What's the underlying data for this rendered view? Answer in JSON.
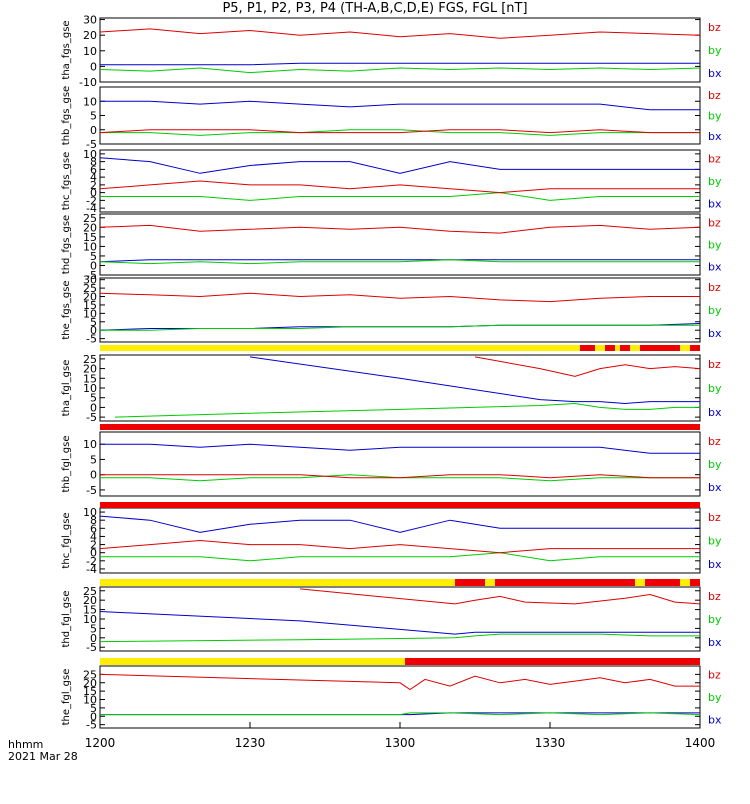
{
  "title": "P5, P1, P2, P3, P4 (TH-A,B,C,D,E) FGS, FGL [nT]",
  "time_axis": {
    "labels": [
      "1200",
      "1230",
      "1300",
      "1330",
      "1400"
    ],
    "label_title": "hhmm",
    "date": "2021 Mar 28",
    "range_minutes": [
      0,
      120
    ]
  },
  "legend_labels": [
    "bz",
    "by",
    "bx"
  ],
  "colors": {
    "bx": "#0000cc",
    "by": "#00cc00",
    "bz": "#dd0000",
    "bar_yellow": "#ffee00",
    "bar_red": "#ee0000",
    "axes": "#000000"
  },
  "chart_data": [
    {
      "type": "line",
      "ylabel": "tha_fgs_gse",
      "ylim": [
        -10,
        31
      ],
      "yticks": [
        30,
        20,
        10,
        0,
        -10
      ],
      "series": [
        {
          "name": "bz",
          "x": [
            0,
            10,
            20,
            30,
            40,
            50,
            60,
            70,
            80,
            90,
            100,
            110,
            120
          ],
          "y": [
            22,
            24,
            21,
            23,
            20,
            22,
            19,
            21,
            18,
            20,
            22,
            21,
            20
          ]
        },
        {
          "name": "by",
          "x": [
            0,
            10,
            20,
            30,
            40,
            50,
            60,
            70,
            80,
            90,
            100,
            110,
            120
          ],
          "y": [
            -2,
            -3,
            -1,
            -4,
            -2,
            -3,
            -1,
            -2,
            -1,
            -2,
            -1,
            -2,
            -1
          ]
        },
        {
          "name": "bx",
          "x": [
            0,
            10,
            20,
            30,
            40,
            50,
            60,
            70,
            80,
            90,
            100,
            110,
            120
          ],
          "y": [
            1,
            1,
            1,
            1,
            2,
            2,
            2,
            2,
            2,
            2,
            2,
            2,
            2
          ]
        }
      ]
    },
    {
      "type": "line",
      "ylabel": "thb_fgs_gse",
      "ylim": [
        -5,
        15
      ],
      "yticks": [
        10,
        5,
        0,
        -5
      ],
      "series": [
        {
          "name": "bz",
          "x": [
            0,
            10,
            20,
            30,
            40,
            50,
            60,
            70,
            80,
            90,
            100,
            110,
            120
          ],
          "y": [
            -1,
            0,
            0,
            0,
            -1,
            -1,
            -1,
            0,
            0,
            -1,
            0,
            -1,
            -1
          ]
        },
        {
          "name": "by",
          "x": [
            0,
            10,
            20,
            30,
            40,
            50,
            60,
            70,
            80,
            90,
            100,
            110,
            120
          ],
          "y": [
            -1,
            -1,
            -2,
            -1,
            -1,
            0,
            0,
            -1,
            -1,
            -2,
            -1,
            -1,
            -1
          ]
        },
        {
          "name": "bx",
          "x": [
            0,
            10,
            20,
            30,
            40,
            50,
            60,
            70,
            80,
            90,
            100,
            110,
            120
          ],
          "y": [
            10,
            10,
            9,
            10,
            9,
            8,
            9,
            9,
            9,
            9,
            9,
            7,
            7
          ]
        }
      ]
    },
    {
      "type": "line",
      "ylabel": "thc_fgs_gse",
      "ylim": [
        -5,
        11
      ],
      "yticks": [
        10,
        8,
        6,
        4,
        2,
        0,
        -2,
        -4
      ],
      "series": [
        {
          "name": "bz",
          "x": [
            0,
            10,
            20,
            30,
            40,
            50,
            60,
            70,
            80,
            90,
            100,
            110,
            120
          ],
          "y": [
            1,
            2,
            3,
            2,
            2,
            1,
            2,
            1,
            0,
            1,
            1,
            1,
            1
          ]
        },
        {
          "name": "by",
          "x": [
            0,
            10,
            20,
            30,
            40,
            50,
            60,
            70,
            80,
            90,
            100,
            110,
            120
          ],
          "y": [
            -1,
            -1,
            -1,
            -2,
            -1,
            -1,
            -1,
            -1,
            0,
            -2,
            -1,
            -1,
            -1
          ]
        },
        {
          "name": "bx",
          "x": [
            0,
            10,
            20,
            30,
            40,
            50,
            60,
            70,
            80,
            90,
            100,
            110,
            120
          ],
          "y": [
            9,
            8,
            5,
            7,
            8,
            8,
            5,
            8,
            6,
            6,
            6,
            6,
            6
          ]
        }
      ]
    },
    {
      "type": "line",
      "ylabel": "thd_fgs_gse",
      "ylim": [
        -5,
        27
      ],
      "yticks": [
        25,
        20,
        15,
        10,
        5,
        0,
        -5
      ],
      "series": [
        {
          "name": "bz",
          "x": [
            0,
            10,
            20,
            30,
            40,
            50,
            60,
            70,
            80,
            90,
            100,
            110,
            120
          ],
          "y": [
            20,
            21,
            18,
            19,
            20,
            19,
            20,
            18,
            17,
            20,
            21,
            19,
            20
          ]
        },
        {
          "name": "by",
          "x": [
            0,
            10,
            20,
            30,
            40,
            50,
            60,
            70,
            80,
            90,
            100,
            110,
            120
          ],
          "y": [
            2,
            1,
            2,
            1,
            2,
            2,
            2,
            3,
            2,
            2,
            2,
            2,
            2
          ]
        },
        {
          "name": "bx",
          "x": [
            0,
            10,
            20,
            30,
            40,
            50,
            60,
            70,
            80,
            90,
            100,
            110,
            120
          ],
          "y": [
            2,
            3,
            3,
            3,
            3,
            3,
            3,
            3,
            3,
            3,
            3,
            3,
            3
          ]
        }
      ]
    },
    {
      "type": "line",
      "ylabel": "the_fgs_gse",
      "ylim": [
        -7,
        31
      ],
      "yticks": [
        30,
        25,
        20,
        15,
        10,
        5,
        0,
        -5
      ],
      "series": [
        {
          "name": "bz",
          "x": [
            0,
            10,
            20,
            30,
            40,
            50,
            60,
            70,
            80,
            90,
            100,
            110,
            120
          ],
          "y": [
            22,
            21,
            20,
            22,
            20,
            21,
            19,
            20,
            18,
            17,
            19,
            20,
            20
          ]
        },
        {
          "name": "by",
          "x": [
            0,
            10,
            20,
            30,
            40,
            50,
            60,
            70,
            80,
            90,
            100,
            110,
            120
          ],
          "y": [
            0,
            0,
            1,
            1,
            1,
            2,
            2,
            2,
            3,
            3,
            3,
            3,
            3
          ]
        },
        {
          "name": "bx",
          "x": [
            0,
            10,
            20,
            30,
            40,
            50,
            60,
            70,
            80,
            90,
            100,
            110,
            120
          ],
          "y": [
            0,
            1,
            1,
            1,
            2,
            2,
            2,
            2,
            3,
            3,
            3,
            3,
            4
          ]
        }
      ]
    },
    {
      "type": "line",
      "ylabel": "tha_fgl_gse",
      "ylim": [
        -7,
        27
      ],
      "yticks": [
        25,
        20,
        15,
        10,
        5,
        0,
        -5
      ],
      "series": [
        {
          "name": "bz",
          "x": [
            75,
            88,
            95,
            100,
            105,
            110,
            115,
            120
          ],
          "y": [
            26,
            20,
            16,
            20,
            22,
            20,
            21,
            20
          ]
        },
        {
          "name": "by",
          "x": [
            3,
            30,
            60,
            88,
            95,
            100,
            105,
            110,
            115,
            120
          ],
          "y": [
            -5,
            -3,
            -1,
            1,
            2,
            0,
            -1,
            -1,
            0,
            0
          ]
        },
        {
          "name": "bx",
          "x": [
            30,
            60,
            88,
            95,
            100,
            105,
            110,
            115,
            120
          ],
          "y": [
            26,
            15,
            4,
            3,
            3,
            2,
            3,
            3,
            3
          ]
        }
      ]
    },
    {
      "type": "line",
      "ylabel": "thb_fgl_gse",
      "ylim": [
        -7,
        14
      ],
      "yticks": [
        10,
        5,
        0,
        -5
      ],
      "series": [
        {
          "name": "bz",
          "x": [
            0,
            10,
            20,
            30,
            40,
            50,
            60,
            70,
            80,
            90,
            100,
            110,
            120
          ],
          "y": [
            0,
            0,
            0,
            0,
            0,
            -1,
            -1,
            0,
            0,
            -1,
            0,
            -1,
            -1
          ]
        },
        {
          "name": "by",
          "x": [
            0,
            10,
            20,
            30,
            40,
            50,
            60,
            70,
            80,
            90,
            100,
            110,
            120
          ],
          "y": [
            -1,
            -1,
            -2,
            -1,
            -1,
            0,
            -1,
            -1,
            -1,
            -2,
            -1,
            -1,
            -1
          ]
        },
        {
          "name": "bx",
          "x": [
            0,
            10,
            20,
            30,
            40,
            50,
            60,
            70,
            80,
            90,
            100,
            110,
            120
          ],
          "y": [
            10,
            10,
            9,
            10,
            9,
            8,
            9,
            9,
            9,
            9,
            9,
            7,
            7
          ]
        }
      ]
    },
    {
      "type": "line",
      "ylabel": "thc_fgl_gse",
      "ylim": [
        -5,
        11
      ],
      "yticks": [
        10,
        8,
        6,
        4,
        2,
        0,
        -2,
        -4
      ],
      "series": [
        {
          "name": "bz",
          "x": [
            0,
            10,
            20,
            30,
            40,
            50,
            60,
            70,
            80,
            90,
            100,
            110,
            120
          ],
          "y": [
            1,
            2,
            3,
            2,
            2,
            1,
            2,
            1,
            0,
            1,
            1,
            1,
            1
          ]
        },
        {
          "name": "by",
          "x": [
            0,
            10,
            20,
            30,
            40,
            50,
            60,
            70,
            80,
            90,
            100,
            110,
            120
          ],
          "y": [
            -1,
            -1,
            -1,
            -2,
            -1,
            -1,
            -1,
            -1,
            0,
            -2,
            -1,
            -1,
            -1
          ]
        },
        {
          "name": "bx",
          "x": [
            0,
            10,
            20,
            30,
            40,
            50,
            60,
            70,
            80,
            90,
            100,
            110,
            120
          ],
          "y": [
            9,
            8,
            5,
            7,
            8,
            8,
            5,
            8,
            6,
            6,
            6,
            6,
            6
          ]
        }
      ]
    },
    {
      "type": "line",
      "ylabel": "thd_fgl_gse",
      "ylim": [
        -7,
        27
      ],
      "yticks": [
        25,
        20,
        15,
        10,
        5,
        0,
        -5
      ],
      "series": [
        {
          "name": "bz",
          "x": [
            40,
            71,
            75,
            80,
            85,
            95,
            105,
            110,
            115,
            120
          ],
          "y": [
            26,
            18,
            20,
            22,
            19,
            18,
            21,
            23,
            19,
            18
          ]
        },
        {
          "name": "by",
          "x": [
            0,
            40,
            71,
            75,
            80,
            90,
            100,
            110,
            120
          ],
          "y": [
            -2,
            -1,
            0,
            1,
            2,
            2,
            2,
            1,
            1
          ]
        },
        {
          "name": "bx",
          "x": [
            0,
            40,
            71,
            75,
            80,
            90,
            100,
            110,
            120
          ],
          "y": [
            14,
            9,
            2,
            3,
            3,
            3,
            3,
            3,
            3
          ]
        }
      ]
    },
    {
      "type": "line",
      "ylabel": "the_fgl_gse",
      "ylim": [
        -7,
        30
      ],
      "yticks": [
        25,
        20,
        15,
        10,
        5,
        0,
        -5
      ],
      "series": [
        {
          "name": "bz",
          "x": [
            0,
            60,
            62,
            65,
            70,
            75,
            80,
            85,
            90,
            95,
            100,
            105,
            110,
            115,
            120
          ],
          "y": [
            25,
            20,
            16,
            22,
            18,
            24,
            20,
            22,
            19,
            21,
            23,
            20,
            22,
            18,
            18
          ]
        },
        {
          "name": "by",
          "x": [
            0,
            60,
            62,
            70,
            80,
            90,
            100,
            110,
            120
          ],
          "y": [
            1,
            1,
            2,
            2,
            1,
            2,
            1,
            2,
            1
          ]
        },
        {
          "name": "bx",
          "x": [
            0,
            60,
            62,
            70,
            80,
            90,
            100,
            110,
            120
          ],
          "y": [
            1,
            1,
            1,
            2,
            2,
            2,
            2,
            2,
            2
          ]
        }
      ]
    }
  ],
  "status_bars": [
    {
      "segments": [
        {
          "from": 0,
          "to": 96,
          "color": "bar_yellow"
        },
        {
          "from": 96,
          "to": 99,
          "color": "bar_red"
        },
        {
          "from": 99,
          "to": 101,
          "color": "bar_yellow"
        },
        {
          "from": 101,
          "to": 103,
          "color": "bar_red"
        },
        {
          "from": 103,
          "to": 104,
          "color": "bar_yellow"
        },
        {
          "from": 104,
          "to": 106,
          "color": "bar_red"
        },
        {
          "from": 106,
          "to": 108,
          "color": "bar_yellow"
        },
        {
          "from": 108,
          "to": 116,
          "color": "bar_red"
        },
        {
          "from": 116,
          "to": 118,
          "color": "bar_yellow"
        },
        {
          "from": 118,
          "to": 120,
          "color": "bar_red"
        }
      ]
    },
    {
      "segments": [
        {
          "from": 0,
          "to": 120,
          "color": "bar_red"
        }
      ]
    },
    {
      "segments": [
        {
          "from": 0,
          "to": 120,
          "color": "bar_red"
        }
      ]
    },
    {
      "segments": [
        {
          "from": 0,
          "to": 71,
          "color": "bar_yellow"
        },
        {
          "from": 71,
          "to": 77,
          "color": "bar_red"
        },
        {
          "from": 77,
          "to": 79,
          "color": "bar_yellow"
        },
        {
          "from": 79,
          "to": 107,
          "color": "bar_red"
        },
        {
          "from": 107,
          "to": 109,
          "color": "bar_yellow"
        },
        {
          "from": 109,
          "to": 116,
          "color": "bar_red"
        },
        {
          "from": 116,
          "to": 118,
          "color": "bar_yellow"
        },
        {
          "from": 118,
          "to": 120,
          "color": "bar_red"
        }
      ]
    },
    {
      "segments": [
        {
          "from": 0,
          "to": 61,
          "color": "bar_yellow"
        },
        {
          "from": 61,
          "to": 120,
          "color": "bar_red"
        }
      ]
    }
  ]
}
